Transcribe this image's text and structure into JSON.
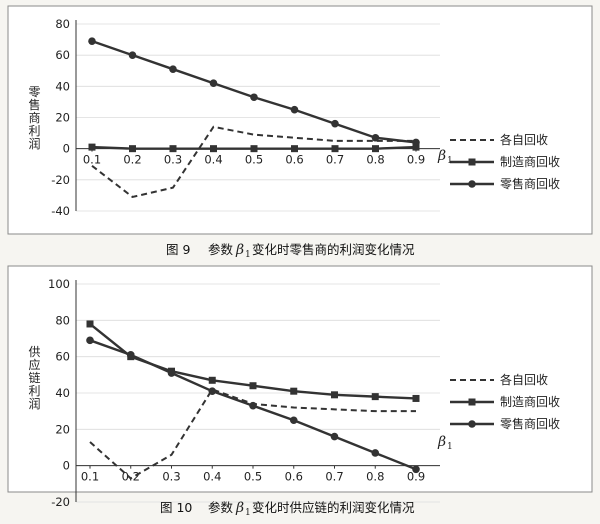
{
  "charts": [
    {
      "caption": "图 9   参数 β1 变化时零售商的利润变化情况",
      "caption_parts": {
        "prefix": "图 9",
        "text_before": "参数",
        "beta": "β",
        "sub": "1",
        "text_after": "变化时零售商的利润变化情况"
      },
      "chart_data": {
        "type": "line",
        "ylabel": "零售商利润",
        "xlabel": "β1",
        "x": [
          "0.1",
          "0.2",
          "0.3",
          "0.4",
          "0.5",
          "0.6",
          "0.7",
          "0.8",
          "0.9"
        ],
        "ylim": [
          -40,
          80
        ],
        "yticks": [
          "-40",
          "-20",
          "0",
          "20",
          "40",
          "60",
          "80"
        ],
        "grid": true,
        "legend": "right",
        "series": [
          {
            "name": "各自回收",
            "style": "dashed",
            "marker": "none",
            "values": [
              -11,
              -31,
              -25,
              14,
              9,
              7,
              5,
              5,
              5
            ]
          },
          {
            "name": "制造商回收",
            "style": "solid",
            "marker": "square",
            "values": [
              1,
              0,
              0,
              0,
              0,
              0,
              0,
              0,
              1
            ]
          },
          {
            "name": "零售商回收",
            "style": "solid",
            "marker": "circle",
            "values": [
              69,
              60,
              51,
              42,
              33,
              25,
              16,
              7,
              4
            ]
          }
        ]
      }
    },
    {
      "caption": "图 10   参数 β1 变化时供应链的利润变化情况",
      "caption_parts": {
        "prefix": "图 10",
        "text_before": "参数",
        "beta": "β",
        "sub": "1",
        "text_after": "变化时供应链的利润变化情况"
      },
      "chart_data": {
        "type": "line",
        "ylabel": "供应链利润",
        "xlabel": "β1",
        "x": [
          "0.1",
          "0.2",
          "0.3",
          "0.4",
          "0.5",
          "0.6",
          "0.7",
          "0.8",
          "0.9"
        ],
        "ylim": [
          -20,
          100
        ],
        "yticks": [
          "-20",
          "0",
          "20",
          "40",
          "60",
          "80",
          "100"
        ],
        "grid": true,
        "legend": "right",
        "series": [
          {
            "name": "各自回收",
            "style": "dashed",
            "marker": "none",
            "values": [
              13,
              -7,
              6,
              42,
              34,
              32,
              31,
              30,
              30
            ]
          },
          {
            "name": "制造商回收",
            "style": "solid",
            "marker": "square",
            "values": [
              78,
              60,
              52,
              47,
              44,
              41,
              39,
              38,
              37
            ]
          },
          {
            "name": "零售商回收",
            "style": "solid",
            "marker": "circle",
            "values": [
              69,
              61,
              51,
              41,
              33,
              25,
              16,
              7,
              -2
            ]
          }
        ]
      }
    }
  ],
  "colors": {
    "line": "#333333",
    "panel_border": "#8a8a8a"
  }
}
